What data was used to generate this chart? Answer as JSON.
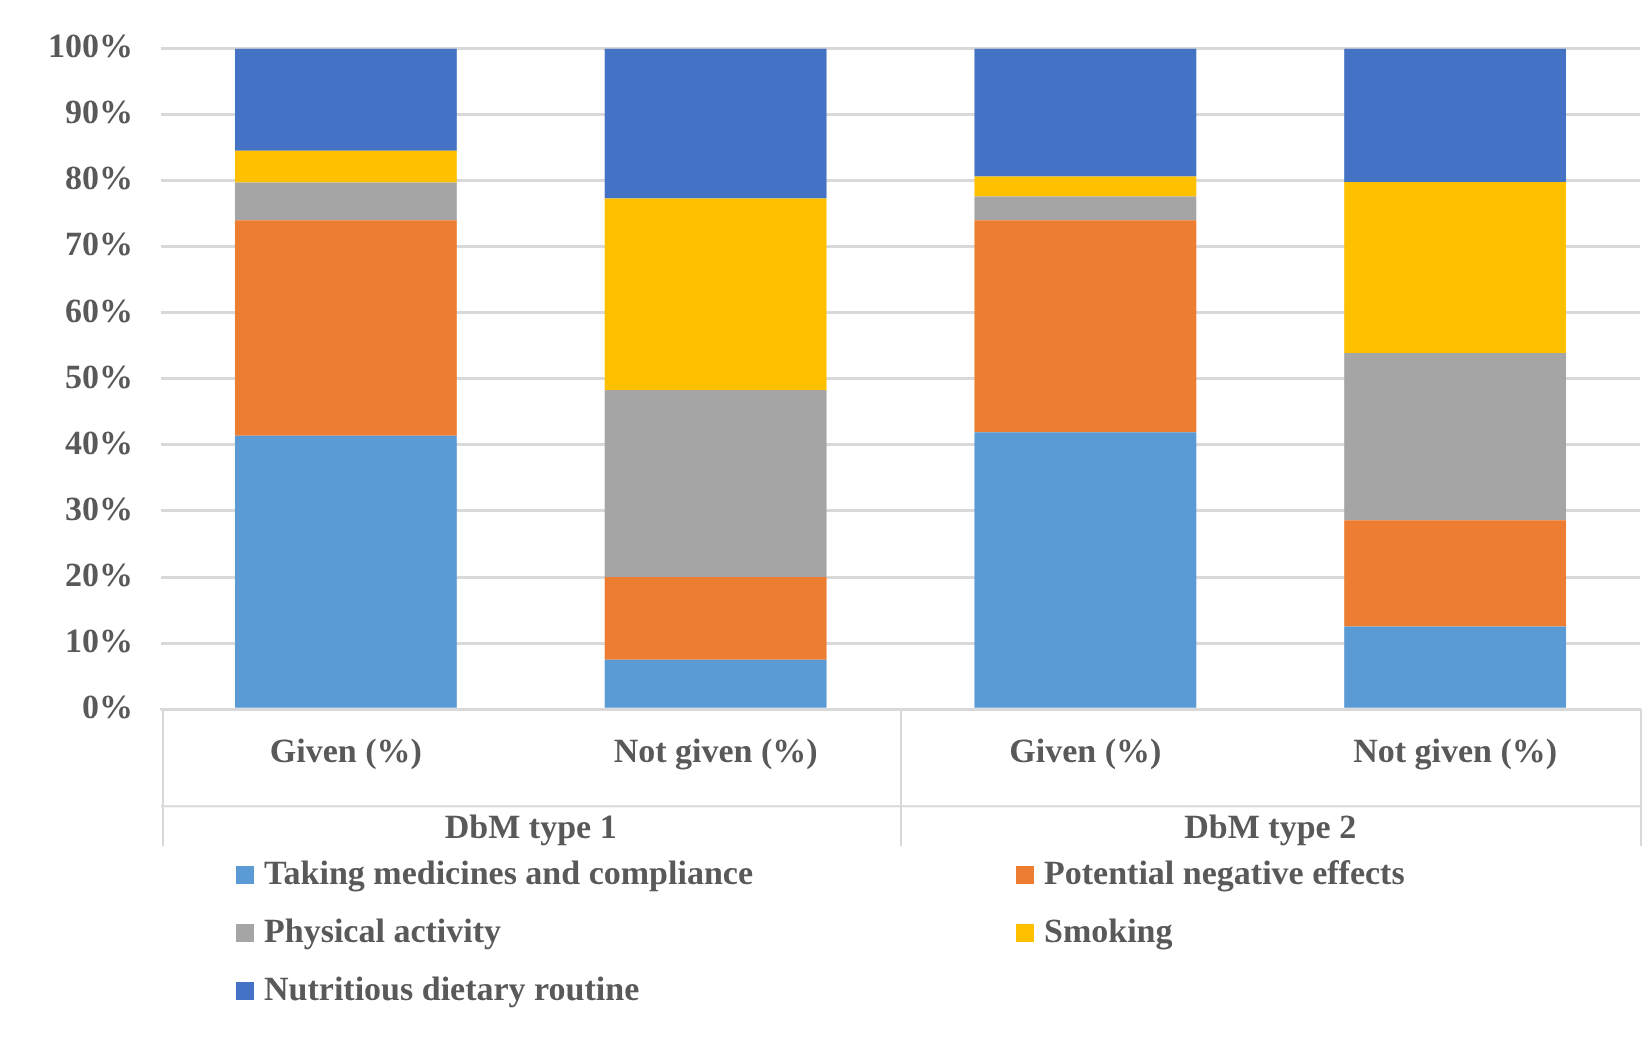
{
  "chart_data": {
    "type": "bar",
    "stacked": true,
    "categories": [
      "Given (%)",
      "Not given (%)",
      "Given (%)",
      "Not given (%)"
    ],
    "annotations": [
      "DbM type 1",
      "DbM type 2"
    ],
    "series": [
      {
        "name": "Taking medicines and compliance",
        "color": "#5b9bd5",
        "values": [
          41.4,
          7.5,
          41.9,
          12.5
        ]
      },
      {
        "name": "Potential negative effects",
        "color": "#ed7d31",
        "values": [
          32.6,
          12.5,
          32.1,
          16.1
        ]
      },
      {
        "name": "Physical activity",
        "color": "#a5a5a5",
        "values": [
          5.7,
          28.3,
          3.6,
          25.3
        ]
      },
      {
        "name": "Smoking",
        "color": "#ffc000",
        "values": [
          4.8,
          29.0,
          3.0,
          25.9
        ]
      },
      {
        "name": "Nutritious dietary routine",
        "color": "#4472c4",
        "values": [
          15.5,
          22.7,
          19.4,
          20.2
        ]
      }
    ],
    "ylim": [
      0,
      100
    ],
    "yticks": [
      {
        "value": 0,
        "label": "0%"
      },
      {
        "value": 10,
        "label": "10%"
      },
      {
        "value": 20,
        "label": "20%"
      },
      {
        "value": 30,
        "label": "30%"
      },
      {
        "value": 40,
        "label": "40%"
      },
      {
        "value": 50,
        "label": "50%"
      },
      {
        "value": 60,
        "label": "60%"
      },
      {
        "value": 70,
        "label": "70%"
      },
      {
        "value": 80,
        "label": "80%"
      },
      {
        "value": 90,
        "label": "90%"
      },
      {
        "value": 100,
        "label": "100%"
      }
    ],
    "grid": "y",
    "legend": "bottom"
  }
}
